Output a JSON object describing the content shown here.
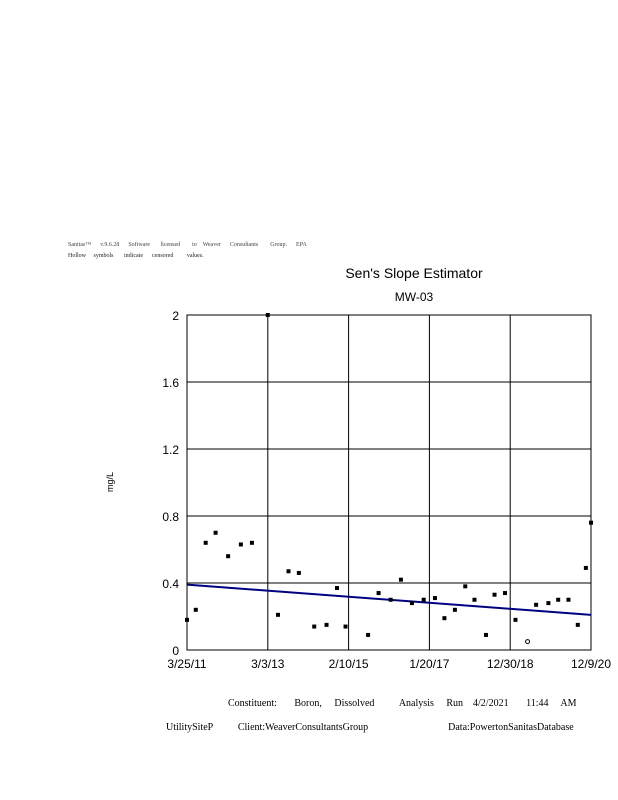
{
  "header": {
    "line1": "Sanitas™      v.9.6.28      Software       licensed        to    Weaver      Consultants        Group.      EPA",
    "line2": "Hollow     symbols       indicate      censored         values."
  },
  "chart_data": {
    "type": "scatter",
    "title": "Sen's Slope Estimator",
    "subtitle": "MW-03",
    "ylabel": "mg/L",
    "xlabel": "",
    "ylim": [
      0,
      2
    ],
    "yticks": [
      "0",
      "0.4",
      "0.8",
      "1.2",
      "1.6",
      "2"
    ],
    "xlim": [
      "2011-03-25",
      "2020-12-09"
    ],
    "xticks": [
      "3/25/11",
      "3/3/13",
      "2/10/15",
      "1/20/17",
      "12/30/18",
      "12/9/20"
    ],
    "grid": true,
    "colors": {
      "trend": "#000080",
      "points": "#000000"
    },
    "series": [
      {
        "name": "",
        "points": [
          {
            "x": "2011-03-25",
            "y": 0.18
          },
          {
            "x": "2011-06-10",
            "y": 0.24
          },
          {
            "x": "2011-09-05",
            "y": 0.64
          },
          {
            "x": "2011-12-01",
            "y": 0.7
          },
          {
            "x": "2012-03-20",
            "y": 0.56
          },
          {
            "x": "2012-07-10",
            "y": 0.63
          },
          {
            "x": "2012-10-15",
            "y": 0.64
          },
          {
            "x": "2013-03-03",
            "y": 2.0
          },
          {
            "x": "2013-06-01",
            "y": 0.21
          },
          {
            "x": "2013-09-01",
            "y": 0.47
          },
          {
            "x": "2013-12-01",
            "y": 0.46
          },
          {
            "x": "2014-04-15",
            "y": 0.14
          },
          {
            "x": "2014-08-01",
            "y": 0.15
          },
          {
            "x": "2014-11-01",
            "y": 0.37
          },
          {
            "x": "2015-01-15",
            "y": 0.14
          },
          {
            "x": "2015-08-01",
            "y": 0.09
          },
          {
            "x": "2015-11-01",
            "y": 0.34
          },
          {
            "x": "2016-02-15",
            "y": 0.3
          },
          {
            "x": "2016-05-15",
            "y": 0.42
          },
          {
            "x": "2016-08-20",
            "y": 0.28
          },
          {
            "x": "2016-12-01",
            "y": 0.3
          },
          {
            "x": "2017-03-10",
            "y": 0.31
          },
          {
            "x": "2017-06-01",
            "y": 0.19
          },
          {
            "x": "2017-09-01",
            "y": 0.24
          },
          {
            "x": "2017-12-01",
            "y": 0.38
          },
          {
            "x": "2018-02-20",
            "y": 0.3
          },
          {
            "x": "2018-06-01",
            "y": 0.09
          },
          {
            "x": "2018-08-15",
            "y": 0.33
          },
          {
            "x": "2018-11-15",
            "y": 0.34
          },
          {
            "x": "2019-02-15",
            "y": 0.18
          },
          {
            "x": "2019-06-01",
            "y": 0.05,
            "censored": true
          },
          {
            "x": "2019-08-15",
            "y": 0.27
          },
          {
            "x": "2019-12-01",
            "y": 0.28
          },
          {
            "x": "2020-02-25",
            "y": 0.3
          },
          {
            "x": "2020-05-25",
            "y": 0.3
          },
          {
            "x": "2020-08-15",
            "y": 0.15
          },
          {
            "x": "2020-10-25",
            "y": 0.49
          },
          {
            "x": "2020-12-09",
            "y": 0.76
          }
        ]
      }
    ],
    "trend_line": {
      "start": {
        "x": "2011-03-25",
        "y": 0.39
      },
      "end": {
        "x": "2020-12-09",
        "y": 0.21
      }
    }
  },
  "footer": {
    "line1": "Constituent:       Boron,     Dissolved          Analysis     Run    4/2/2021       11:44     AM",
    "line2": "UtilitySiteP          Client:WeaverConsultantsGroup                                Data:PowertonSanitasDatabase"
  }
}
